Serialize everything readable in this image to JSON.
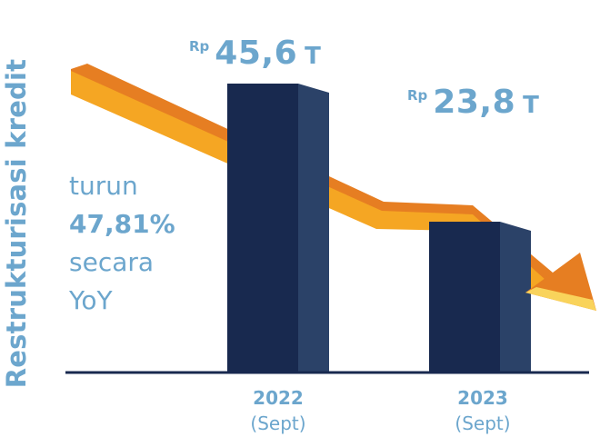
{
  "chart_data": {
    "type": "bar",
    "ylabel": "Restrukturisasi kredit",
    "categories": [
      {
        "year": "2022",
        "period": "(Sept)"
      },
      {
        "year": "2023",
        "period": "(Sept)"
      }
    ],
    "values": [
      45.6,
      23.8
    ],
    "value_labels": [
      {
        "currency": "Rp",
        "amount": "45,6",
        "unit": "T"
      },
      {
        "currency": "Rp",
        "amount": "23,8",
        "unit": "T"
      }
    ],
    "ylim": [
      0,
      55
    ],
    "annotation": {
      "line1": "turun",
      "line2": "47,81%",
      "line3": "secara",
      "line4": "YoY"
    },
    "colors": {
      "bar_front": "#18294f",
      "bar_side": "#2b4268",
      "label": "#6ca6cd",
      "arrow_top": "#f5a623",
      "arrow_side": "#e67e22",
      "arrowhead_tip": "#f9d35b",
      "baseline": "#18294f"
    }
  }
}
